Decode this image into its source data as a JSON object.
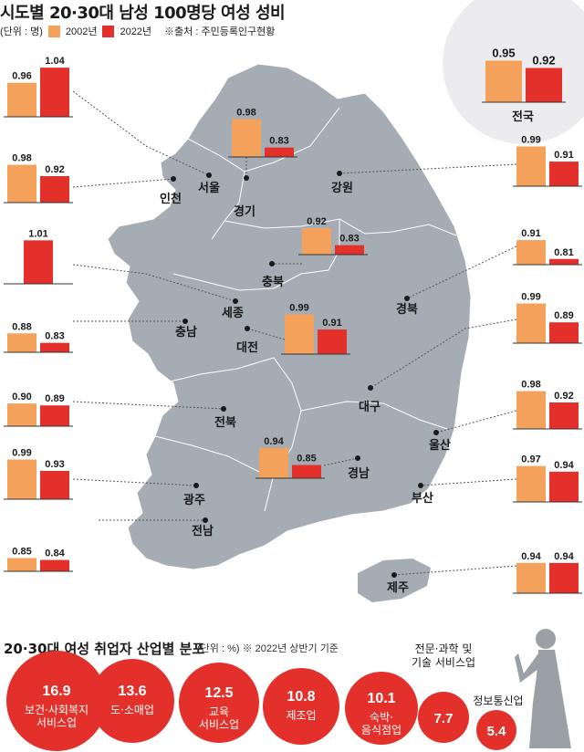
{
  "title": "시도별 20·30대 남성 100명당 여성 성비",
  "unit_label": "(단위 : 명)",
  "source": "※출처 : 주민등록인구현황",
  "colors": {
    "series_2002": "#f4a15c",
    "series_2022": "#e3302a",
    "map_fill": "#a5acb3",
    "national_circle": "#ececee",
    "bubble": "#e3302a"
  },
  "chart_data": [
    {
      "type": "bar",
      "title": "시도별 20·30대 남성 100명당 여성 성비",
      "unit": "(단위 : 명)",
      "series": [
        {
          "name": "2002년",
          "color": "#f4a15c"
        },
        {
          "name": "2022년",
          "color": "#e3302a"
        }
      ],
      "regions": [
        {
          "name": "전국",
          "v2002": "0.95",
          "v2022": "0.92"
        },
        {
          "name": "서울",
          "v2002": "0.96",
          "v2022": "1.04"
        },
        {
          "name": "경기",
          "v2002": "0.98",
          "v2022": "0.83"
        },
        {
          "name": "인천",
          "v2002": "0.98",
          "v2022": "0.92"
        },
        {
          "name": "세종",
          "v2002": "",
          "v2022": "1.01"
        },
        {
          "name": "충북",
          "v2002": "0.92",
          "v2022": "0.83"
        },
        {
          "name": "충남",
          "v2002": "0.88",
          "v2022": "0.83"
        },
        {
          "name": "대전",
          "v2002": "0.99",
          "v2022": "0.91"
        },
        {
          "name": "전북",
          "v2002": "0.90",
          "v2022": "0.89"
        },
        {
          "name": "경남",
          "v2002": "0.94",
          "v2022": "0.85"
        },
        {
          "name": "광주",
          "v2002": "0.99",
          "v2022": "0.93"
        },
        {
          "name": "전남",
          "v2002": "0.85",
          "v2022": "0.84"
        },
        {
          "name": "강원",
          "v2002": "0.99",
          "v2022": "0.91"
        },
        {
          "name": "경북",
          "v2002": "0.91",
          "v2022": "0.81"
        },
        {
          "name": "대구",
          "v2002": "0.99",
          "v2022": "0.89"
        },
        {
          "name": "울산",
          "v2002": "0.98",
          "v2022": "0.92"
        },
        {
          "name": "부산",
          "v2002": "0.97",
          "v2022": "0.94"
        },
        {
          "name": "제주",
          "v2002": "0.94",
          "v2022": "0.94"
        }
      ]
    },
    {
      "type": "bubble",
      "title": "20·30대 여성 취업자 산업별 분포",
      "unit": "(단위 : %) ※ 2022년 상반기 기준",
      "items": [
        {
          "value": "16.9",
          "label": [
            "보건·사회복지",
            "서비스업"
          ]
        },
        {
          "value": "13.6",
          "label": [
            "도·소매업"
          ]
        },
        {
          "value": "12.5",
          "label": [
            "교육",
            "서비스업"
          ]
        },
        {
          "value": "10.8",
          "label": [
            "제조업"
          ]
        },
        {
          "value": "10.1",
          "label": [
            "숙박·",
            "음식점업"
          ]
        },
        {
          "value": "7.7",
          "label": [
            "전문·과학 및",
            "기술 서비스업"
          ]
        },
        {
          "value": "5.4",
          "label": [
            "정보통신업"
          ]
        }
      ]
    }
  ]
}
